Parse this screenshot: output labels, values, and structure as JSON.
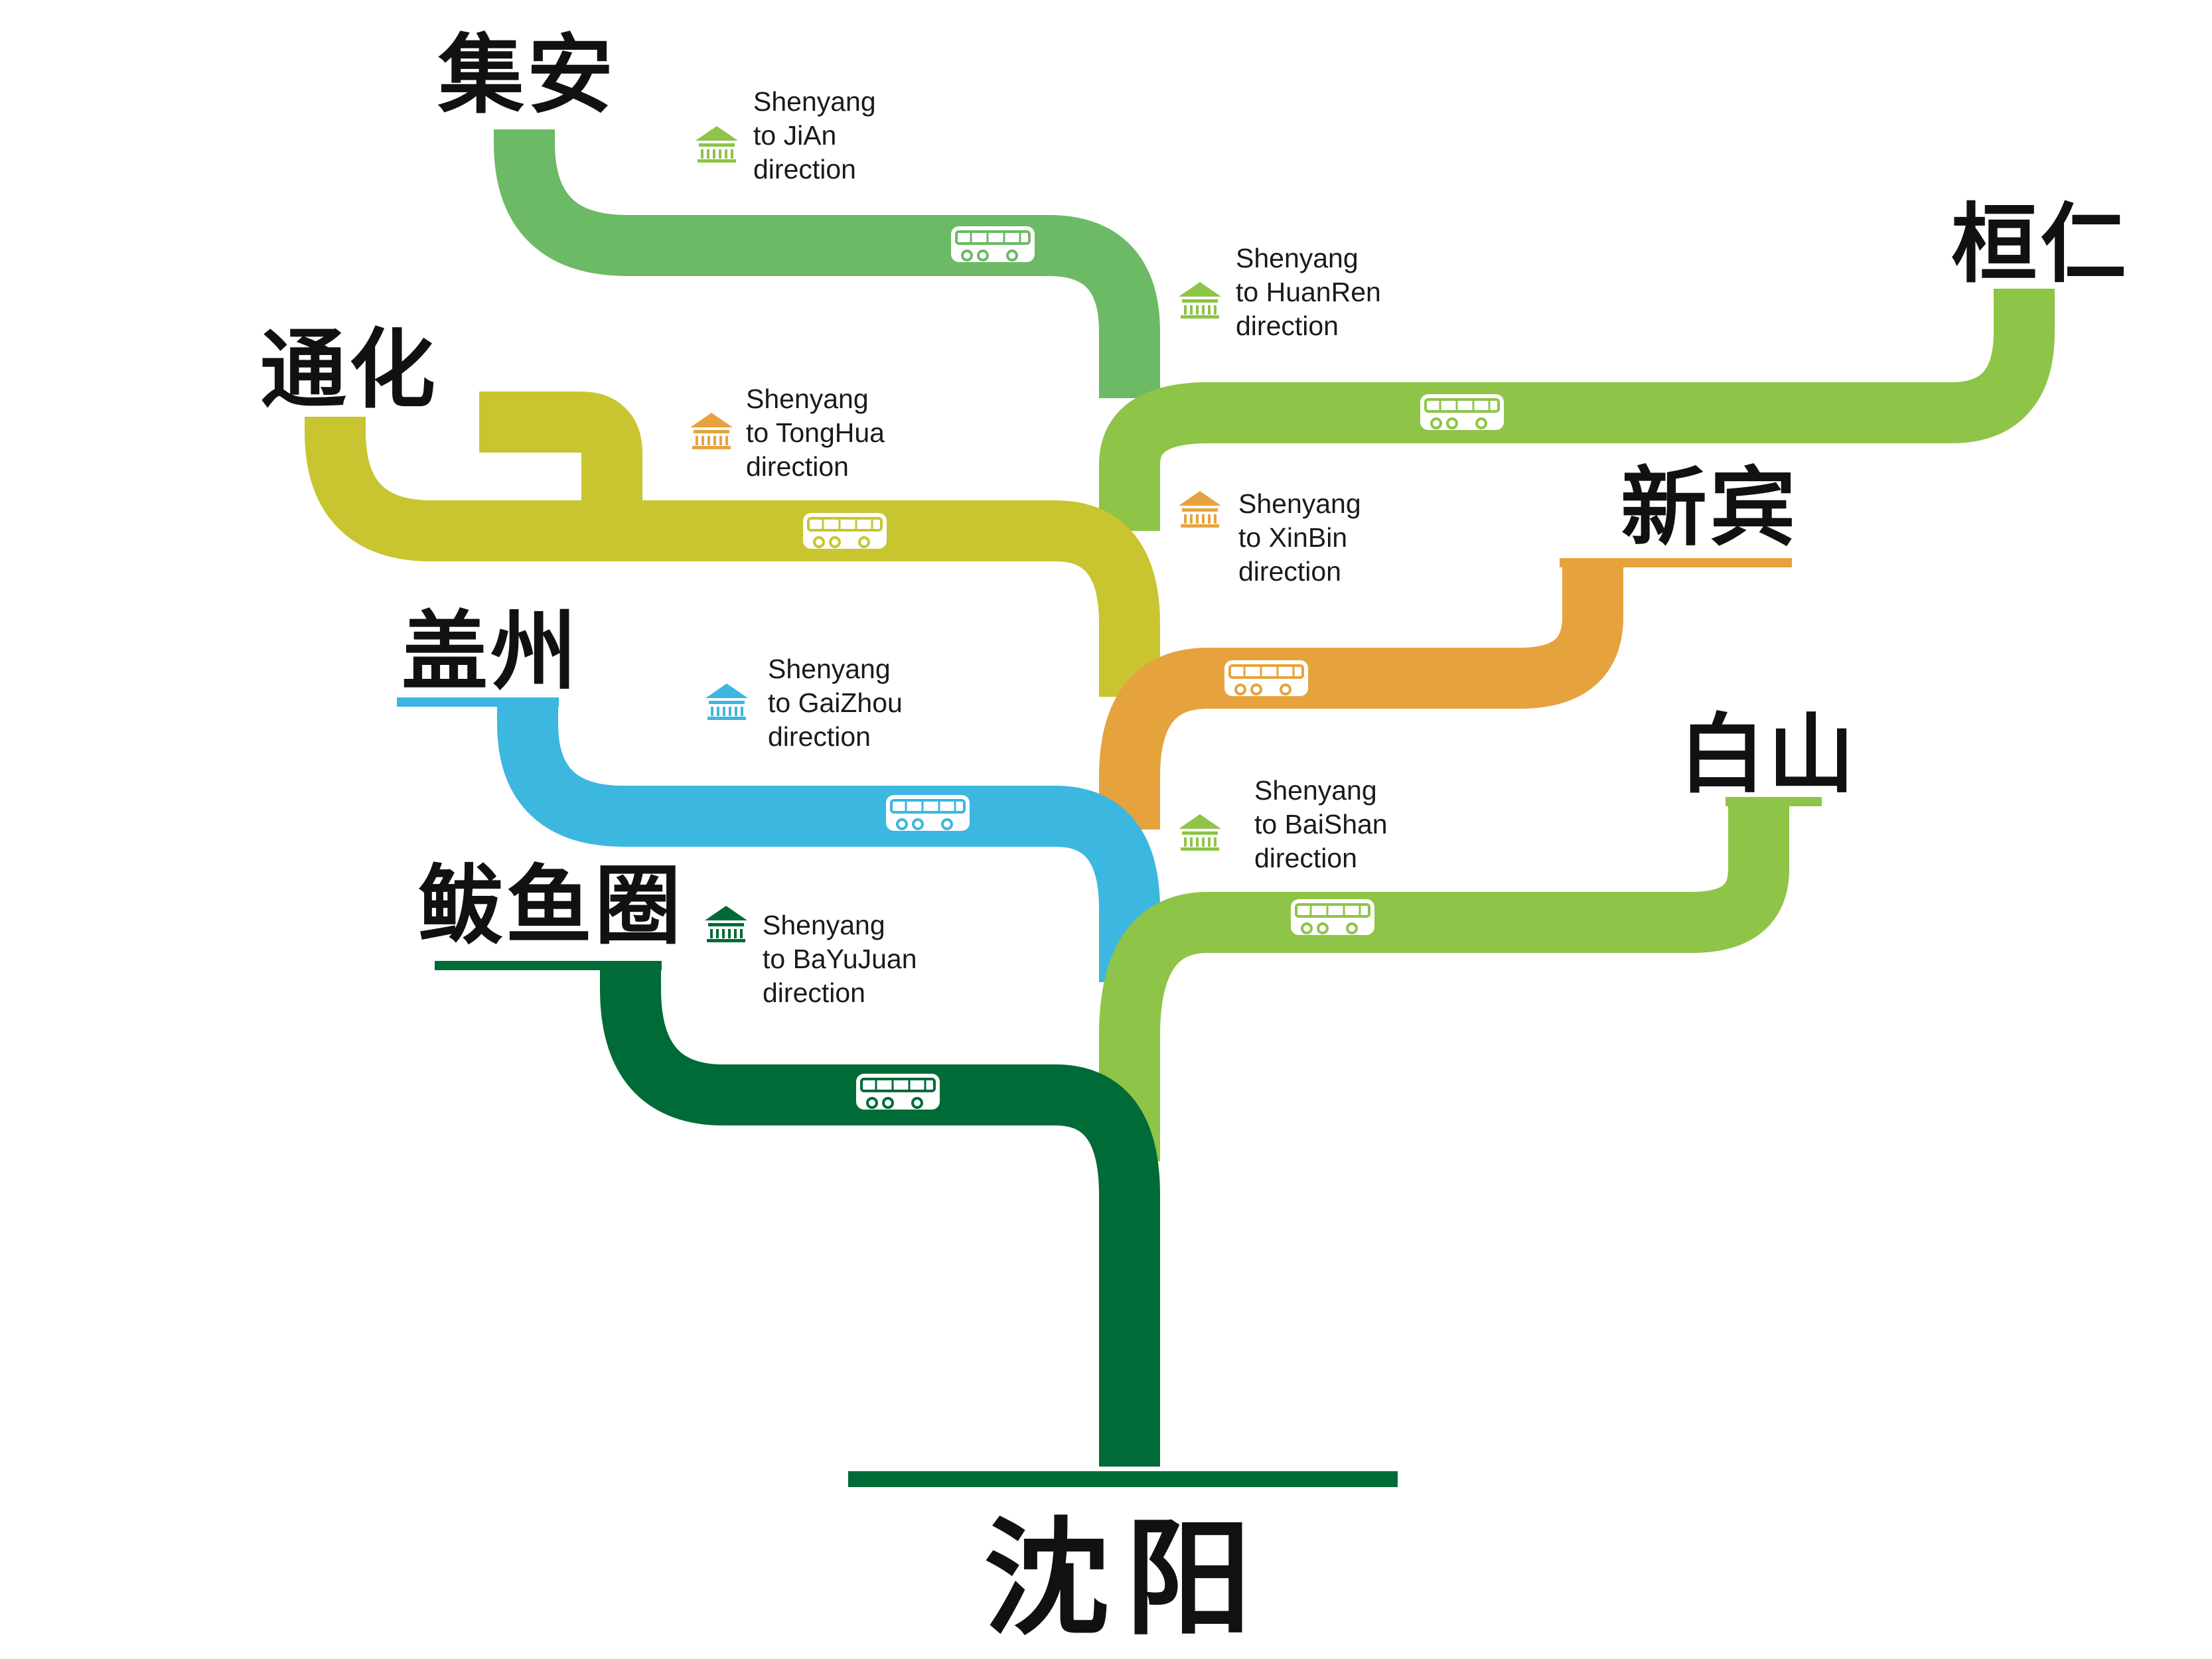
{
  "origin": {
    "name": "沈阳"
  },
  "routes": [
    {
      "id": "jian",
      "city": "集安",
      "color": "#6cb966",
      "caption": [
        "Shenyang",
        "to JiAn",
        "direction"
      ]
    },
    {
      "id": "huanren",
      "city": "桓仁",
      "color": "#8ec447",
      "caption": [
        "Shenyang",
        "to HuanRen",
        "direction"
      ]
    },
    {
      "id": "tonghua",
      "city": "通化",
      "color": "#c8c530",
      "caption": [
        "Shenyang",
        "to TongHua",
        "direction"
      ]
    },
    {
      "id": "xinbin",
      "city": "新宾",
      "color": "#e6a33d",
      "caption": [
        "Shenyang",
        "to XinBin",
        "direction"
      ]
    },
    {
      "id": "gaizhou",
      "city": "盖州",
      "color": "#3cb7e0",
      "caption": [
        "Shenyang",
        "to GaiZhou",
        "direction"
      ]
    },
    {
      "id": "baishan",
      "city": "白山",
      "color": "#8ec447",
      "caption": [
        "Shenyang",
        "to BaiShan",
        "direction"
      ]
    },
    {
      "id": "bayujuan",
      "city": "鲅鱼圈",
      "color": "#006b36",
      "caption": [
        "Shenyang",
        "to BaYuJuan",
        "direction"
      ]
    }
  ],
  "icons": {
    "vehicle": "bus-icon",
    "stop": "station-icon"
  }
}
